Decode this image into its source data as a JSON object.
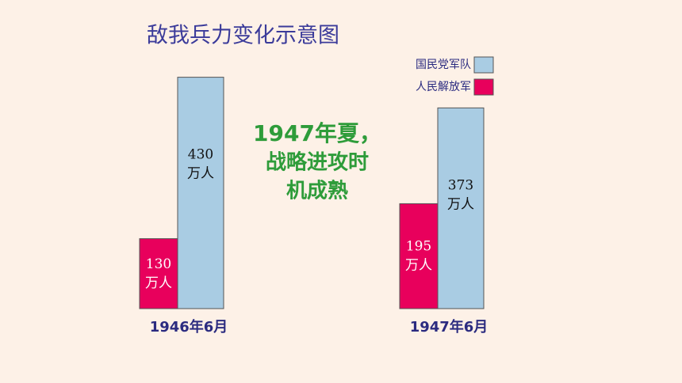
{
  "chart_data": {
    "type": "bar",
    "title": "敌我兵力变化示意图",
    "categories": [
      "1946年6月",
      "1947年6月"
    ],
    "series": [
      {
        "name": "人民解放军",
        "color": "#e8005c",
        "values": [
          130,
          195
        ],
        "value_labels": [
          "130\n万人",
          "195\n万人"
        ]
      },
      {
        "name": "国民党军队",
        "color": "#a9cce3",
        "values": [
          430,
          373
        ],
        "value_labels": [
          "430\n万人",
          "373\n万人"
        ]
      }
    ],
    "annotation": [
      "1947年夏，",
      "战略进攻时",
      "机成熟"
    ]
  }
}
